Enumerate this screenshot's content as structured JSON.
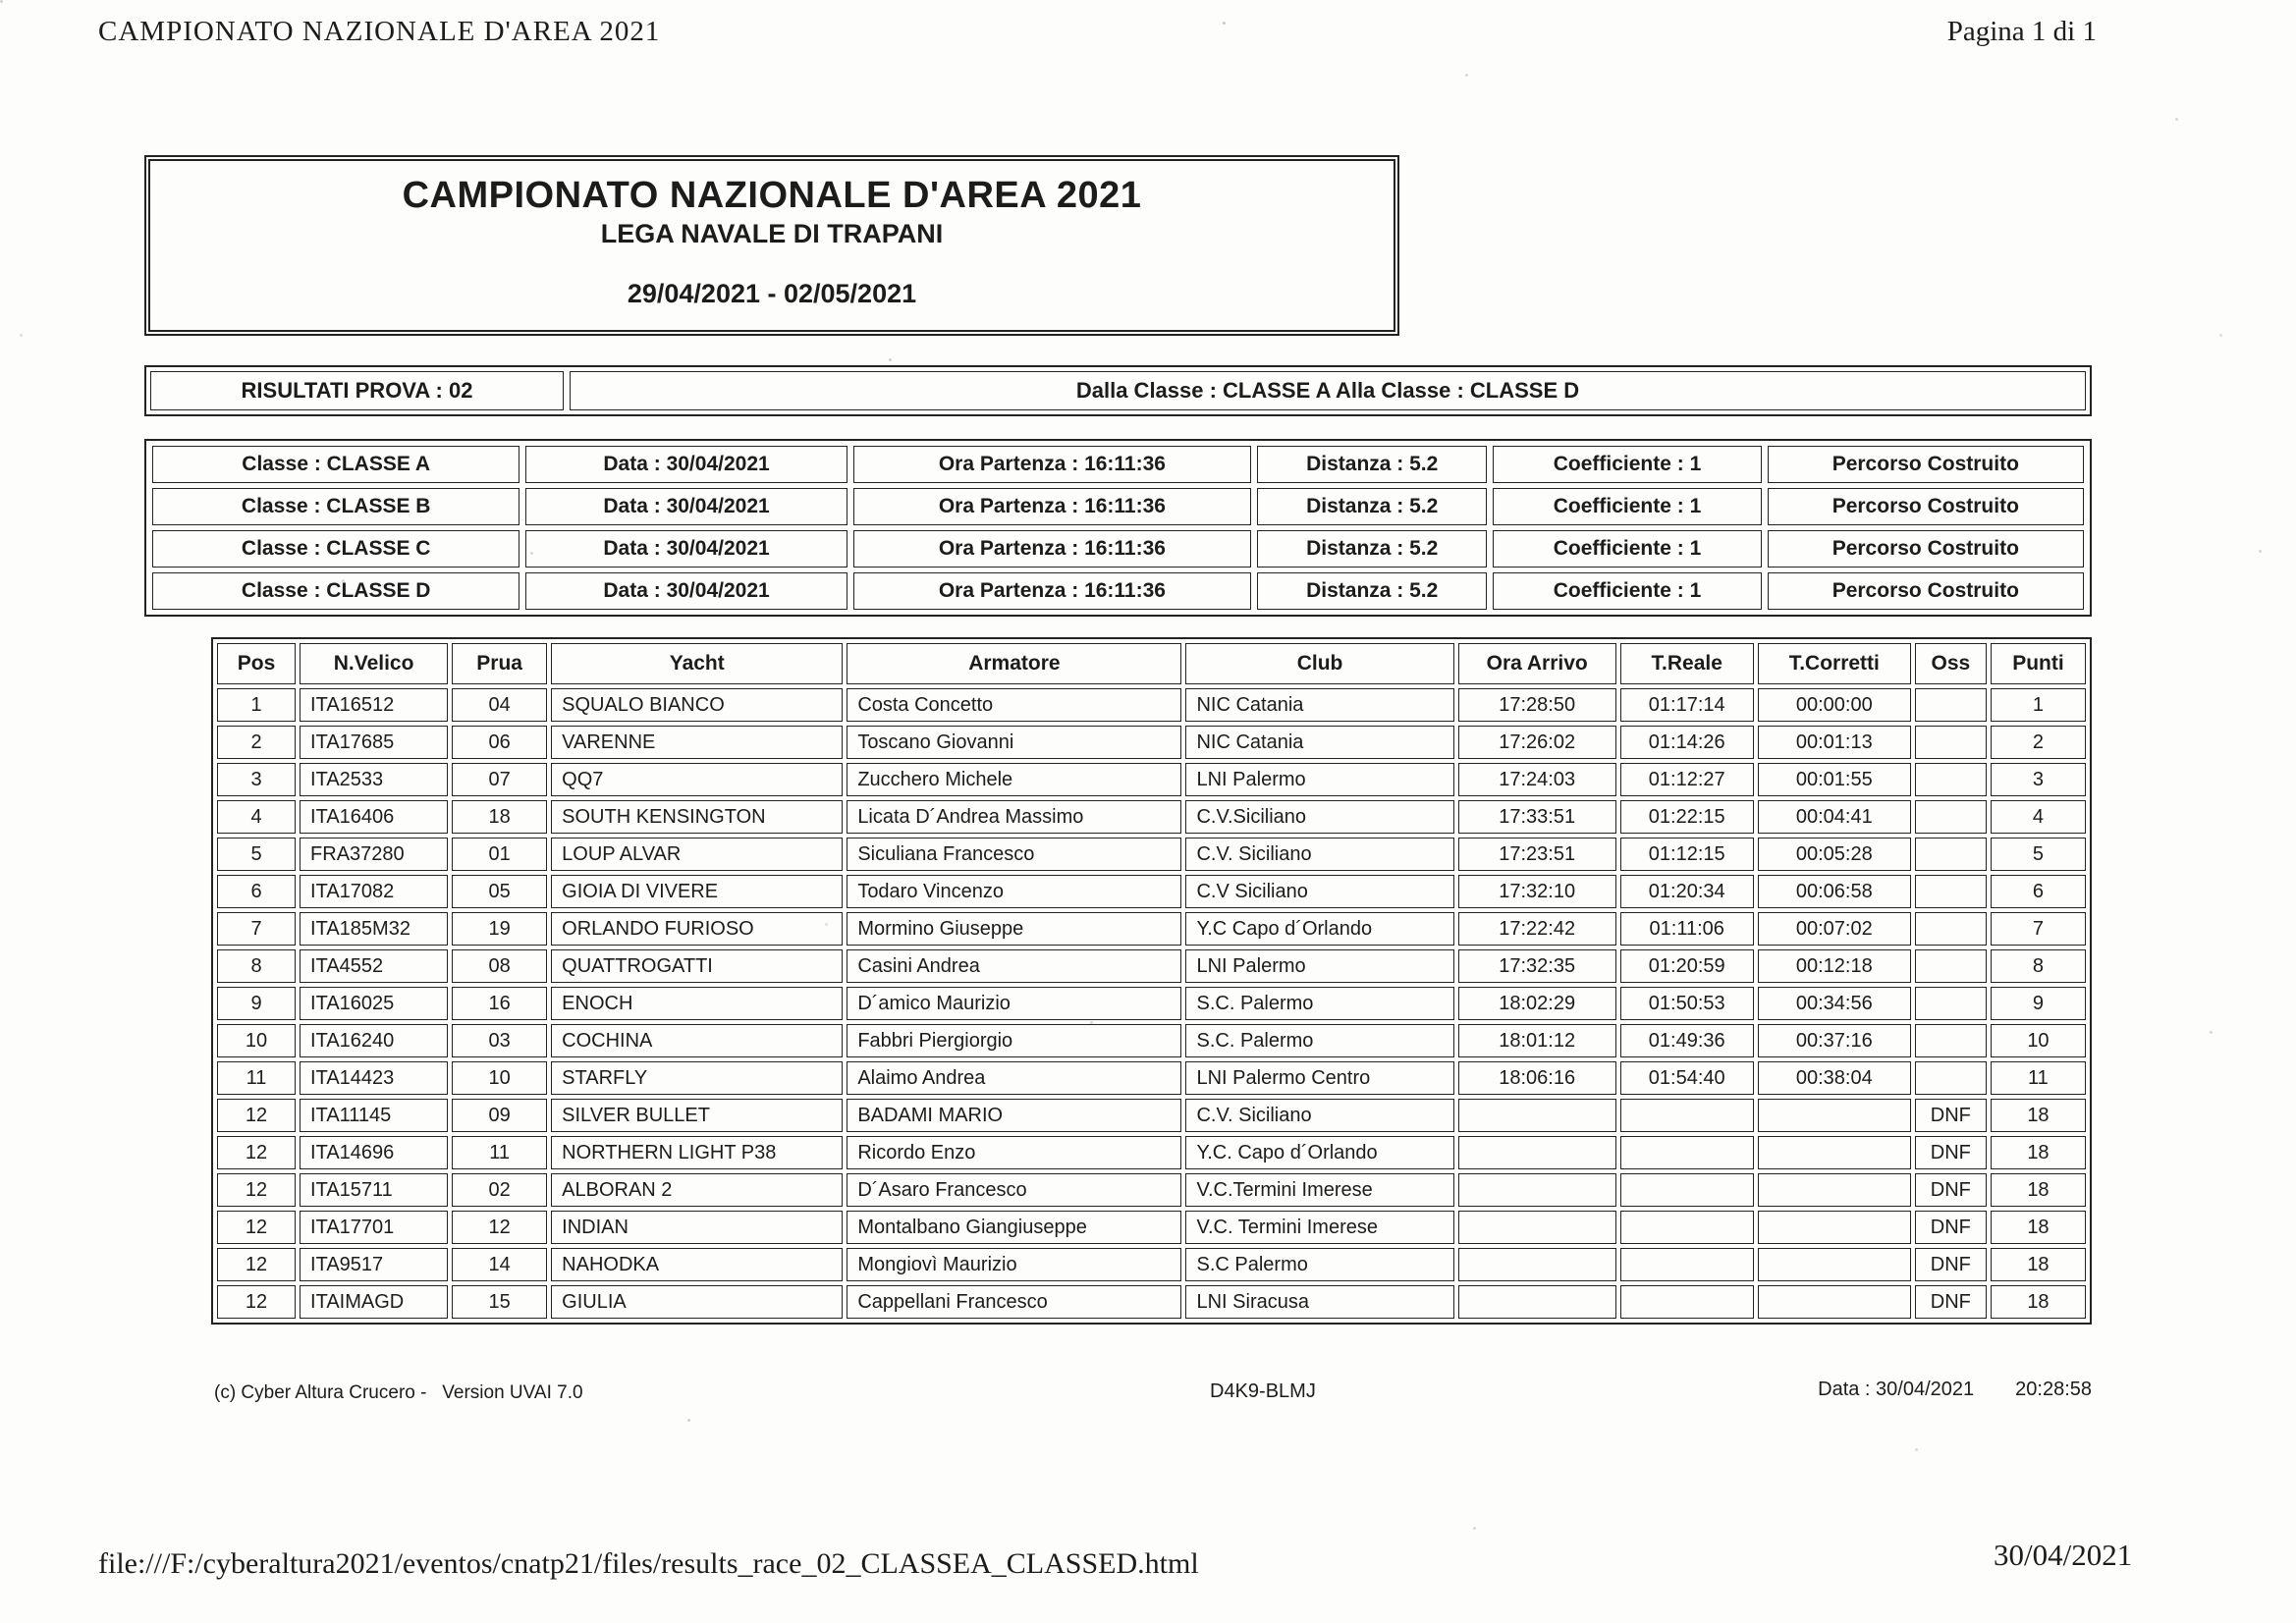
{
  "colors": {
    "ink": "#1c1c1c",
    "paper": "#fdfdfc"
  },
  "page": {
    "header_left": "CAMPIONATO NAZIONALE D'AREA 2021",
    "header_right": "Pagina 1 di 1",
    "footer_url": "file:///F:/cyberaltura2021/eventos/cnatp21/files/results_race_02_CLASSEA_CLASSED.html",
    "footer_date": "30/04/2021"
  },
  "title_box": {
    "title": "CAMPIONATO NAZIONALE D'AREA 2021",
    "subtitle": "LEGA NAVALE DI TRAPANI",
    "date_range": "29/04/2021 - 02/05/2021"
  },
  "prova_bar": {
    "left": "RISULTATI PROVA : 02",
    "right": "Dalla Classe : CLASSE A Alla Classe : CLASSE D"
  },
  "classes": [
    {
      "classe": "Classe : CLASSE A",
      "data": "Data : 30/04/2021",
      "ora_partenza": "Ora Partenza : 16:11:36",
      "distanza": "Distanza : 5.2",
      "coefficiente": "Coefficiente : 1",
      "percorso": "Percorso Costruito"
    },
    {
      "classe": "Classe : CLASSE B",
      "data": "Data : 30/04/2021",
      "ora_partenza": "Ora Partenza : 16:11:36",
      "distanza": "Distanza : 5.2",
      "coefficiente": "Coefficiente : 1",
      "percorso": "Percorso Costruito"
    },
    {
      "classe": "Classe : CLASSE C",
      "data": "Data : 30/04/2021",
      "ora_partenza": "Ora Partenza : 16:11:36",
      "distanza": "Distanza : 5.2",
      "coefficiente": "Coefficiente : 1",
      "percorso": "Percorso Costruito"
    },
    {
      "classe": "Classe : CLASSE D",
      "data": "Data : 30/04/2021",
      "ora_partenza": "Ora Partenza : 16:11:36",
      "distanza": "Distanza : 5.2",
      "coefficiente": "Coefficiente : 1",
      "percorso": "Percorso Costruito"
    }
  ],
  "results": {
    "columns": [
      "Pos",
      "N.Velico",
      "Prua",
      "Yacht",
      "Armatore",
      "Club",
      "Ora Arrivo",
      "T.Reale",
      "T.Corretti",
      "Oss",
      "Punti"
    ],
    "rows": [
      [
        "1",
        "ITA16512",
        "04",
        "SQUALO BIANCO",
        "Costa Concetto",
        "NIC Catania",
        "17:28:50",
        "01:17:14",
        "00:00:00",
        "",
        "1"
      ],
      [
        "2",
        "ITA17685",
        "06",
        "VARENNE",
        "Toscano Giovanni",
        "NIC Catania",
        "17:26:02",
        "01:14:26",
        "00:01:13",
        "",
        "2"
      ],
      [
        "3",
        "ITA2533",
        "07",
        "QQ7",
        "Zucchero Michele",
        "LNI Palermo",
        "17:24:03",
        "01:12:27",
        "00:01:55",
        "",
        "3"
      ],
      [
        "4",
        "ITA16406",
        "18",
        "SOUTH KENSINGTON",
        "Licata D´Andrea Massimo",
        "C.V.Siciliano",
        "17:33:51",
        "01:22:15",
        "00:04:41",
        "",
        "4"
      ],
      [
        "5",
        "FRA37280",
        "01",
        "LOUP ALVAR",
        "Siculiana Francesco",
        "C.V. Siciliano",
        "17:23:51",
        "01:12:15",
        "00:05:28",
        "",
        "5"
      ],
      [
        "6",
        "ITA17082",
        "05",
        "GIOIA DI VIVERE",
        "Todaro Vincenzo",
        "C.V Siciliano",
        "17:32:10",
        "01:20:34",
        "00:06:58",
        "",
        "6"
      ],
      [
        "7",
        "ITA185M32",
        "19",
        "ORLANDO FURIOSO",
        "Mormino Giuseppe",
        "Y.C Capo d´Orlando",
        "17:22:42",
        "01:11:06",
        "00:07:02",
        "",
        "7"
      ],
      [
        "8",
        "ITA4552",
        "08",
        "QUATTROGATTI",
        "Casini Andrea",
        "LNI Palermo",
        "17:32:35",
        "01:20:59",
        "00:12:18",
        "",
        "8"
      ],
      [
        "9",
        "ITA16025",
        "16",
        "ENOCH",
        "D´amico Maurizio",
        "S.C. Palermo",
        "18:02:29",
        "01:50:53",
        "00:34:56",
        "",
        "9"
      ],
      [
        "10",
        "ITA16240",
        "03",
        "COCHINA",
        "Fabbri Piergiorgio",
        "S.C. Palermo",
        "18:01:12",
        "01:49:36",
        "00:37:16",
        "",
        "10"
      ],
      [
        "11",
        "ITA14423",
        "10",
        "STARFLY",
        "Alaimo Andrea",
        "LNI Palermo Centro",
        "18:06:16",
        "01:54:40",
        "00:38:04",
        "",
        "11"
      ],
      [
        "12",
        "ITA11145",
        "09",
        "SILVER BULLET",
        "BADAMI MARIO",
        "C.V. Siciliano",
        "",
        "",
        "",
        "DNF",
        "18"
      ],
      [
        "12",
        "ITA14696",
        "11",
        "NORTHERN LIGHT P38",
        "Ricordo Enzo",
        "Y.C. Capo d´Orlando",
        "",
        "",
        "",
        "DNF",
        "18"
      ],
      [
        "12",
        "ITA15711",
        "02",
        "ALBORAN 2",
        "D´Asaro Francesco",
        "V.C.Termini Imerese",
        "",
        "",
        "",
        "DNF",
        "18"
      ],
      [
        "12",
        "ITA17701",
        "12",
        "INDIAN",
        "Montalbano Giangiuseppe",
        "V.C. Termini Imerese",
        "",
        "",
        "",
        "DNF",
        "18"
      ],
      [
        "12",
        "ITA9517",
        "14",
        "NAHODKA",
        "Mongiovì Maurizio",
        "S.C Palermo",
        "",
        "",
        "",
        "DNF",
        "18"
      ],
      [
        "12",
        "ITAIMAGD",
        "15",
        "GIULIA",
        "Cappellani Francesco",
        "LNI Siracusa",
        "",
        "",
        "",
        "DNF",
        "18"
      ]
    ]
  },
  "report_footer": {
    "left": "(c) Cyber Altura Crucero -   Version UVAI 7.0",
    "center": "D4K9-BLMJ",
    "right_label": "Data : 30/04/2021",
    "right_time": "20:28:58"
  }
}
